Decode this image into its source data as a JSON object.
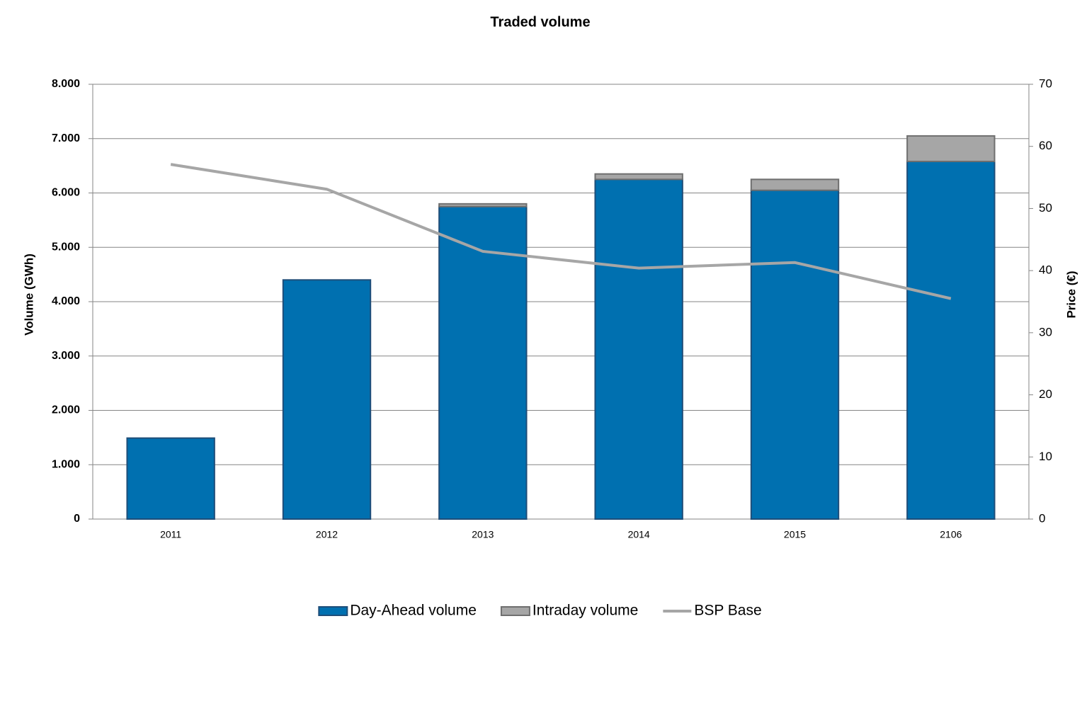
{
  "chart_data": {
    "type": "bar",
    "stacked": true,
    "title": "Traded volume",
    "y_label": "Volume (GWh)",
    "y2_label": "Price (€)",
    "categories": [
      "2011",
      "2012",
      "2013",
      "2014",
      "2015",
      "2106"
    ],
    "series": [
      {
        "name": "Day-Ahead volume",
        "type": "bar",
        "color": "#0070b0",
        "values": [
          1490,
          4400,
          5750,
          6250,
          6050,
          6580
        ]
      },
      {
        "name": "Intraday volume",
        "type": "bar",
        "color": "#a6a6a6",
        "values": [
          0,
          0,
          50,
          100,
          200,
          470
        ]
      },
      {
        "name": "BSP Base",
        "type": "line",
        "axis": "y2",
        "color": "#a6a6a6",
        "values": [
          57.1,
          53.1,
          43.1,
          40.4,
          41.3,
          35.5
        ]
      }
    ],
    "ylim": [
      0,
      8000
    ],
    "yticks": [
      0,
      {
        "value": 1000,
        "label": "1.000"
      },
      {
        "value": 2000,
        "label": "2.000"
      },
      {
        "value": 3000,
        "label": "3.000"
      },
      {
        "value": 4000,
        "label": "4.000"
      },
      {
        "value": 5000,
        "label": "5.000"
      },
      {
        "value": 6000,
        "label": "6.000"
      },
      {
        "value": 7000,
        "label": "7.000"
      },
      {
        "value": 8000,
        "label": "8.000"
      }
    ],
    "y2lim": [
      0,
      70
    ],
    "y2ticks": [
      0,
      10,
      20,
      30,
      40,
      50,
      60,
      70
    ],
    "grid": true,
    "legend": "bottom"
  }
}
